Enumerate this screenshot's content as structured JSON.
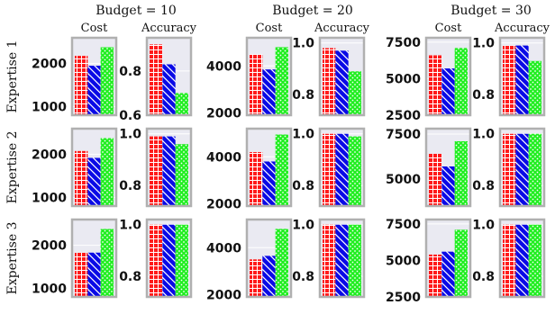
{
  "figure": {
    "row_labels": [
      "Expertise 1",
      "Expertise 2",
      "Expertise 3"
    ],
    "col_titles": [
      "Budget = 10",
      "Budget = 20",
      "Budget = 30"
    ],
    "panel_titles": [
      "Cost",
      "Accuracy"
    ]
  },
  "colors": {
    "red": "#ff1a1a",
    "blue": "#0a0ae6",
    "green": "#22ee22",
    "panel_bg": "#eaeaf2",
    "frame": "#b0b0b0"
  },
  "chart_data": [
    {
      "type": "bar",
      "row": "Expertise 1",
      "budget": "Budget = 10",
      "metric": "Cost",
      "values": [
        2180,
        1950,
        2380
      ],
      "ylim": [
        800,
        2600
      ],
      "yticks": [
        1000,
        2000
      ],
      "ytick_labels": [
        "1000",
        "2000"
      ]
    },
    {
      "type": "bar",
      "row": "Expertise 1",
      "budget": "Budget = 10",
      "metric": "Accuracy",
      "values": [
        0.92,
        0.83,
        0.7
      ],
      "ylim": [
        0.6,
        0.95
      ],
      "yticks": [
        0.6,
        0.8
      ],
      "ytick_labels": [
        "0.6",
        "0.8"
      ]
    },
    {
      "type": "bar",
      "row": "Expertise 1",
      "budget": "Budget = 20",
      "metric": "Cost",
      "values": [
        4500,
        3850,
        4800
      ],
      "ylim": [
        1900,
        5200
      ],
      "yticks": [
        2000,
        4000
      ],
      "ytick_labels": [
        "2000",
        "4000"
      ]
    },
    {
      "type": "bar",
      "row": "Expertise 1",
      "budget": "Budget = 20",
      "metric": "Accuracy",
      "values": [
        0.98,
        0.97,
        0.89
      ],
      "ylim": [
        0.72,
        1.02
      ],
      "yticks": [
        0.8,
        1.0
      ],
      "ytick_labels": [
        "0.8",
        "1.0"
      ]
    },
    {
      "type": "bar",
      "row": "Expertise 1",
      "budget": "Budget = 30",
      "metric": "Cost",
      "values": [
        6600,
        5700,
        7100
      ],
      "ylim": [
        2500,
        7800
      ],
      "yticks": [
        2500,
        5000,
        7500
      ],
      "ytick_labels": [
        "2500",
        "5000",
        "7500"
      ]
    },
    {
      "type": "bar",
      "row": "Expertise 1",
      "budget": "Budget = 30",
      "metric": "Accuracy",
      "values": [
        0.99,
        0.99,
        0.93
      ],
      "ylim": [
        0.72,
        1.02
      ],
      "yticks": [
        0.8,
        1.0
      ],
      "ytick_labels": [
        "0.8",
        "1.0"
      ]
    },
    {
      "type": "bar",
      "row": "Expertise 2",
      "budget": "Budget = 10",
      "metric": "Cost",
      "values": [
        2080,
        1920,
        2380
      ],
      "ylim": [
        800,
        2600
      ],
      "yticks": [
        1000,
        2000
      ],
      "ytick_labels": [
        "1000",
        "2000"
      ]
    },
    {
      "type": "bar",
      "row": "Expertise 2",
      "budget": "Budget = 10",
      "metric": "Accuracy",
      "values": [
        0.99,
        0.99,
        0.96
      ],
      "ylim": [
        0.72,
        1.02
      ],
      "yticks": [
        0.8,
        1.0
      ],
      "ytick_labels": [
        "0.8",
        "1.0"
      ]
    },
    {
      "type": "bar",
      "row": "Expertise 2",
      "budget": "Budget = 20",
      "metric": "Cost",
      "values": [
        4200,
        3800,
        4950
      ],
      "ylim": [
        1900,
        5200
      ],
      "yticks": [
        2000,
        4000
      ],
      "ytick_labels": [
        "2000",
        "4000"
      ]
    },
    {
      "type": "bar",
      "row": "Expertise 2",
      "budget": "Budget = 20",
      "metric": "Accuracy",
      "values": [
        1.0,
        1.0,
        0.99
      ],
      "ylim": [
        0.72,
        1.02
      ],
      "yticks": [
        0.8,
        1.0
      ],
      "ytick_labels": [
        "0.8",
        "1.0"
      ]
    },
    {
      "type": "bar",
      "row": "Expertise 2",
      "budget": "Budget = 30",
      "metric": "Cost",
      "values": [
        6400,
        5700,
        7100
      ],
      "ylim": [
        3500,
        7800
      ],
      "yticks": [
        5000,
        7500
      ],
      "ytick_labels": [
        "5000",
        "7500"
      ]
    },
    {
      "type": "bar",
      "row": "Expertise 2",
      "budget": "Budget = 30",
      "metric": "Accuracy",
      "values": [
        1.0,
        1.0,
        1.0
      ],
      "ylim": [
        0.72,
        1.02
      ],
      "yticks": [
        0.8,
        1.0
      ],
      "ytick_labels": [
        "0.8",
        "1.0"
      ]
    },
    {
      "type": "bar",
      "row": "Expertise 3",
      "budget": "Budget = 10",
      "metric": "Cost",
      "values": [
        1830,
        1830,
        2380
      ],
      "ylim": [
        800,
        2600
      ],
      "yticks": [
        1000,
        2000
      ],
      "ytick_labels": [
        "1000",
        "2000"
      ]
    },
    {
      "type": "bar",
      "row": "Expertise 3",
      "budget": "Budget = 10",
      "metric": "Accuracy",
      "values": [
        1.0,
        1.0,
        1.0
      ],
      "ylim": [
        0.72,
        1.02
      ],
      "yticks": [
        0.8,
        1.0
      ],
      "ytick_labels": [
        "0.8",
        "1.0"
      ]
    },
    {
      "type": "bar",
      "row": "Expertise 3",
      "budget": "Budget = 20",
      "metric": "Cost",
      "values": [
        3500,
        3650,
        4800
      ],
      "ylim": [
        1900,
        5200
      ],
      "yticks": [
        2000,
        4000
      ],
      "ytick_labels": [
        "2000",
        "4000"
      ]
    },
    {
      "type": "bar",
      "row": "Expertise 3",
      "budget": "Budget = 20",
      "metric": "Accuracy",
      "values": [
        1.0,
        1.0,
        1.0
      ],
      "ylim": [
        0.72,
        1.02
      ],
      "yticks": [
        0.8,
        1.0
      ],
      "ytick_labels": [
        "0.8",
        "1.0"
      ]
    },
    {
      "type": "bar",
      "row": "Expertise 3",
      "budget": "Budget = 30",
      "metric": "Cost",
      "values": [
        5400,
        5600,
        7100
      ],
      "ylim": [
        2500,
        7800
      ],
      "yticks": [
        2500,
        5000,
        7500
      ],
      "ytick_labels": [
        "2500",
        "5000",
        "7500"
      ]
    },
    {
      "type": "bar",
      "row": "Expertise 3",
      "budget": "Budget = 30",
      "metric": "Accuracy",
      "values": [
        1.0,
        1.0,
        1.0
      ],
      "ylim": [
        0.72,
        1.02
      ],
      "yticks": [
        0.8,
        1.0
      ],
      "ytick_labels": [
        "0.8",
        "1.0"
      ]
    }
  ]
}
